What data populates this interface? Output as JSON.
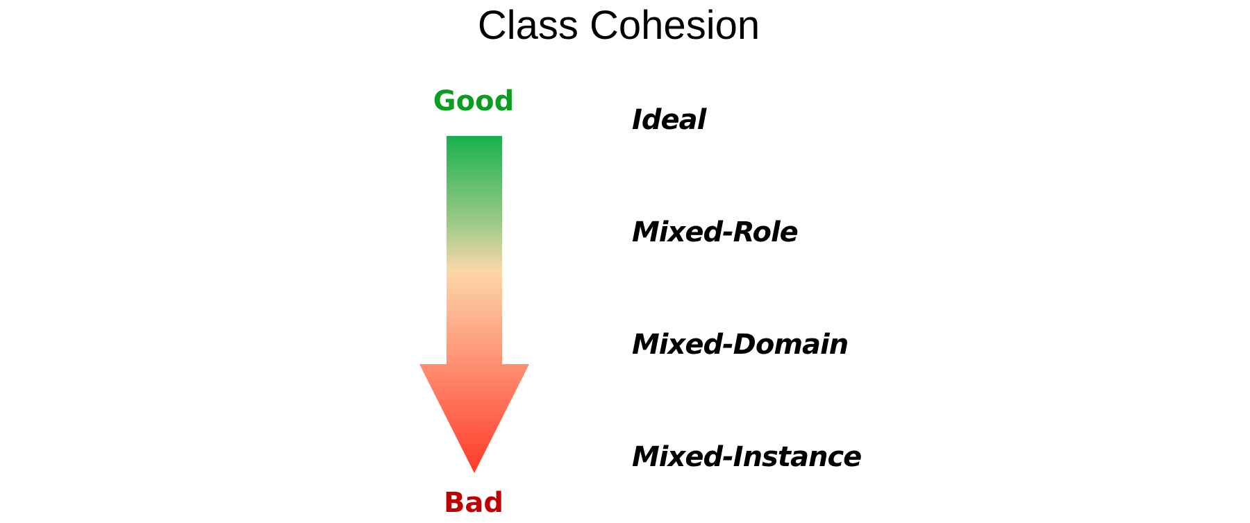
{
  "title": "Class Cohesion",
  "scale": {
    "top_label": "Good",
    "bottom_label": "Bad",
    "top_color": "#0a9e1f",
    "bottom_color": "#c00000"
  },
  "arrow_gradient": [
    "#17b24f",
    "#a9cc8d",
    "#fbd7aa",
    "#ff9e7e",
    "#ff3a2a"
  ],
  "levels": [
    {
      "label": "Ideal"
    },
    {
      "label": "Mixed-Role"
    },
    {
      "label": "Mixed-Domain"
    },
    {
      "label": "Mixed-Instance"
    }
  ]
}
